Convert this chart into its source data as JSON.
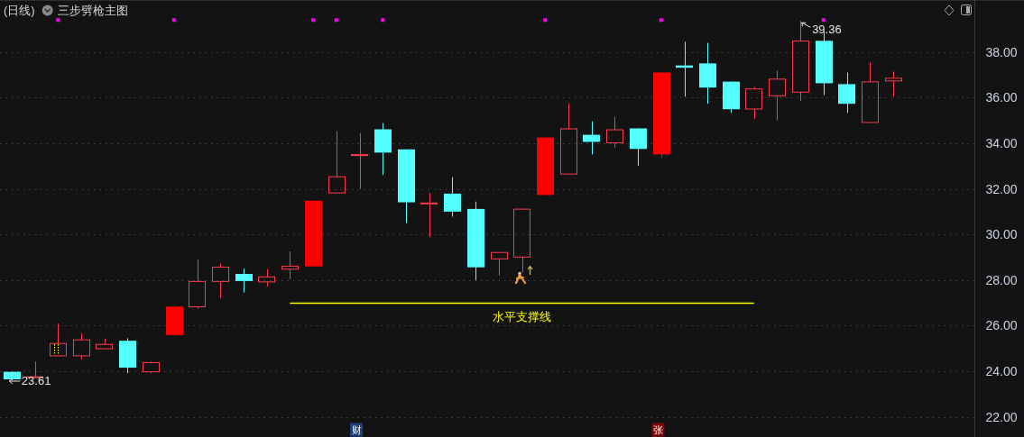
{
  "chart_data": {
    "type": "candlestick",
    "title": "(日线)",
    "subtitle": "三步劈枪主图",
    "categories": [
      null,
      null,
      null,
      null,
      null,
      null,
      null,
      null,
      null,
      null,
      null,
      null,
      null,
      null,
      null,
      null,
      null,
      null,
      null,
      null,
      null,
      null,
      null,
      null,
      null,
      null,
      null,
      null,
      null,
      null,
      null,
      null,
      null,
      null,
      null,
      null,
      null,
      null,
      null,
      null,
      null,
      null
    ],
    "ohlc": [
      [
        23.98,
        23.98,
        23.61,
        23.65
      ],
      [
        23.72,
        24.43,
        23.7,
        23.76
      ],
      [
        24.68,
        26.09,
        24.68,
        25.22
      ],
      [
        24.68,
        25.66,
        24.52,
        25.38
      ],
      [
        24.99,
        25.42,
        24.99,
        25.18
      ],
      [
        25.34,
        25.45,
        23.92,
        24.16
      ],
      [
        23.98,
        24.43,
        23.92,
        24.38
      ],
      [
        25.59,
        26.84,
        25.59,
        26.84
      ],
      [
        26.83,
        28.9,
        26.75,
        27.94
      ],
      [
        27.94,
        28.73,
        27.21,
        28.57
      ],
      [
        28.27,
        28.51,
        27.45,
        27.96
      ],
      [
        27.92,
        28.47,
        27.73,
        28.14
      ],
      [
        28.48,
        29.26,
        28.04,
        28.61
      ],
      [
        28.6,
        31.48,
        28.6,
        31.48
      ],
      [
        31.82,
        34.53,
        31.82,
        32.53
      ],
      [
        33.48,
        34.45,
        32.0,
        33.5
      ],
      [
        34.61,
        34.88,
        32.6,
        33.59
      ],
      [
        33.73,
        33.73,
        30.5,
        31.41
      ],
      [
        31.34,
        31.82,
        29.9,
        31.38
      ],
      [
        31.79,
        32.51,
        30.78,
        31.0
      ],
      [
        31.12,
        31.44,
        28.0,
        28.56
      ],
      [
        28.93,
        29.21,
        28.2,
        29.21
      ],
      [
        29.01,
        31.11,
        28.35,
        31.11
      ],
      [
        31.73,
        34.25,
        31.73,
        34.25
      ],
      [
        32.65,
        35.75,
        32.65,
        34.63
      ],
      [
        34.37,
        34.96,
        33.51,
        34.06
      ],
      [
        34.02,
        35.16,
        33.81,
        34.59
      ],
      [
        34.65,
        34.65,
        33.01,
        33.75
      ],
      [
        33.51,
        37.1,
        33.35,
        37.1
      ],
      [
        37.41,
        38.45,
        36.04,
        37.31
      ],
      [
        37.5,
        38.4,
        35.73,
        36.44
      ],
      [
        36.7,
        36.7,
        35.33,
        35.49
      ],
      [
        35.5,
        36.46,
        35.05,
        36.38
      ],
      [
        36.08,
        37.18,
        35.01,
        36.81
      ],
      [
        36.24,
        39.36,
        35.85,
        38.48
      ],
      [
        38.49,
        38.92,
        36.11,
        36.63
      ],
      [
        36.59,
        37.1,
        35.33,
        35.73
      ],
      [
        34.91,
        37.54,
        34.91,
        36.69
      ],
      [
        36.73,
        37.14,
        36.04,
        36.85
      ],
      null,
      null,
      null
    ],
    "color": "#ff3a4e",
    "colors": [
      "#54ffff",
      "#ff3a4e",
      "#ff3a4e",
      "#ff3a4e",
      "#ff3a4e",
      "#54ffff",
      "#ff3a4e",
      "#ff0000",
      "#ff3a4e",
      "#ff3a4e",
      "#54ffff",
      "#ff3a4e",
      "#ff3a4e",
      "#ff0000",
      "#ff3a4e",
      "#ff3a4e",
      "#54ffff",
      "#54ffff",
      "#ff3a4e",
      "#54ffff",
      "#54ffff",
      "#ff3a4e",
      "#ff3a4e",
      "#ff0000",
      "#ff3a4e",
      "#54ffff",
      "#ff3a4e",
      "#54ffff",
      "#ff0000",
      "#54ffff",
      "#54ffff",
      "#54ffff",
      "#ff3a4e",
      "#ff3a4e",
      "#ff3a4e",
      "#54ffff",
      "#54ffff",
      "#ff3a4e",
      "#ff3a4e",
      null,
      null,
      null
    ],
    "series": [
      {
        "type": "line",
        "name": "水平支撑线",
        "color": "#ffff00",
        "values": [
          null,
          null,
          null,
          null,
          null,
          null,
          null,
          null,
          null,
          null,
          null,
          null,
          27.0,
          27.0,
          27.0,
          27.0,
          27.0,
          27.0,
          27.0,
          27.0,
          27.0,
          27.0,
          27.0,
          27.0,
          27.0,
          27.0,
          27.0,
          27.0,
          27.0,
          27.0,
          27.0,
          27.0,
          27.0,
          null,
          null,
          null,
          null,
          null,
          null,
          null,
          null,
          null
        ]
      },
      {
        "type": "scatter",
        "marker": "square",
        "color": "#ff00ff",
        "values": [
          null,
          null,
          39.4,
          null,
          null,
          null,
          null,
          39.4,
          null,
          null,
          null,
          null,
          null,
          39.4,
          39.4,
          null,
          39.4,
          null,
          null,
          null,
          null,
          null,
          null,
          39.4,
          null,
          null,
          null,
          null,
          39.4,
          null,
          null,
          null,
          null,
          null,
          null,
          39.4,
          null,
          null,
          null,
          null,
          null,
          null
        ]
      }
    ],
    "ylim": [
      21.2,
      40.2
    ],
    "yticks": [
      {
        "value": 22,
        "label": "22.00"
      },
      {
        "value": 24,
        "label": "24.00"
      },
      {
        "value": 26,
        "label": "26.00"
      },
      {
        "value": 28,
        "label": "28.00"
      },
      {
        "value": 30,
        "label": "30.00"
      },
      {
        "value": 32,
        "label": "32.00"
      },
      {
        "value": 34,
        "label": "34.00"
      },
      {
        "value": 36,
        "label": "36.00"
      },
      {
        "value": 38,
        "label": "38.00"
      }
    ],
    "grid": "y",
    "tick_labels": "y",
    "annotations": [
      "39.36",
      "23.61",
      "财",
      "张"
    ]
  }
}
